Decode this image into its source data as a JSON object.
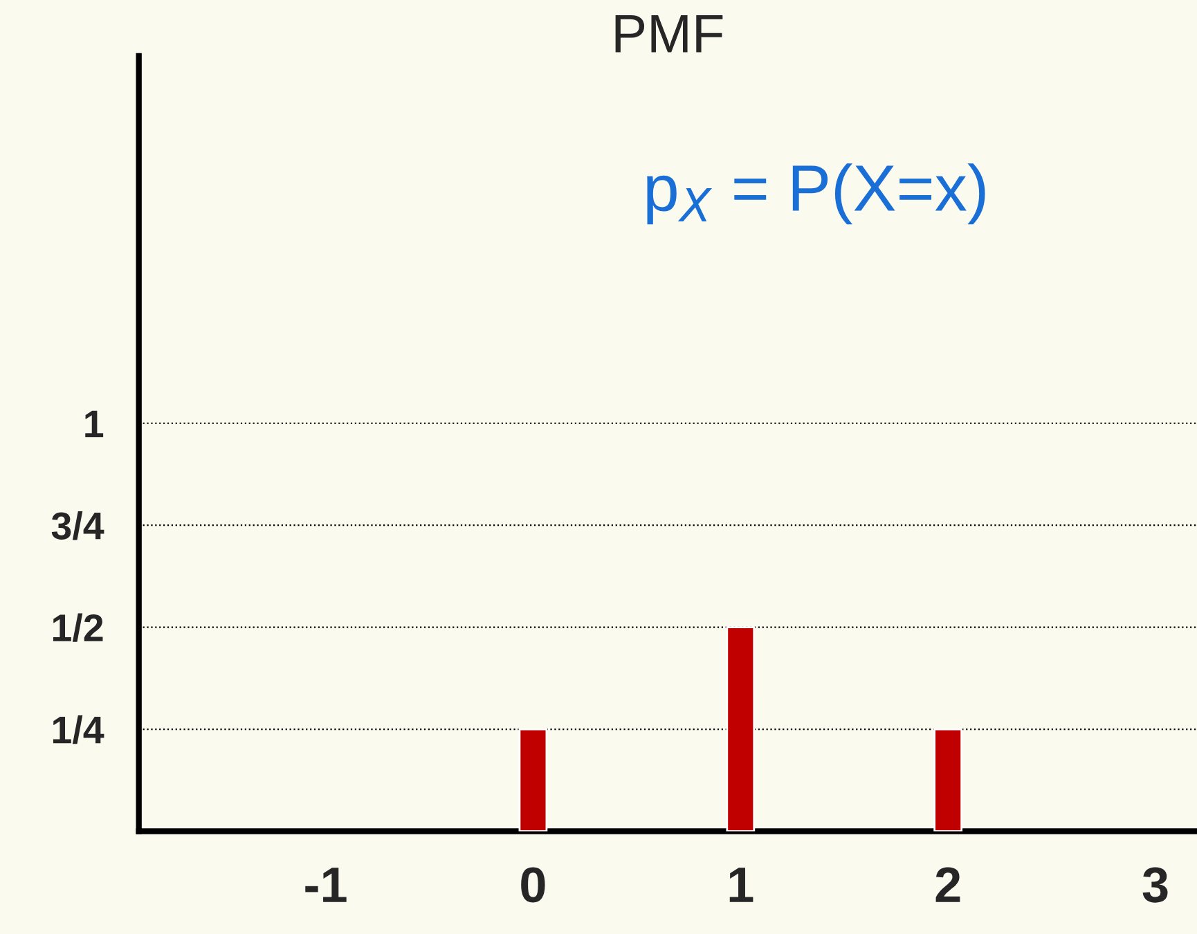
{
  "chart_data": {
    "type": "bar",
    "title": "PMF",
    "x": [
      0,
      1,
      2
    ],
    "values": [
      0.25,
      0.5,
      0.25
    ],
    "color": "#c00000",
    "xlim": [
      -1.9,
      3.2
    ],
    "xticks": [
      -1,
      0,
      1,
      2,
      3
    ],
    "ylim": [
      0,
      1.9
    ],
    "yticks": [
      {
        "value": 0.25,
        "label": "1/4"
      },
      {
        "value": 0.5,
        "label": "1/2"
      },
      {
        "value": 0.75,
        "label": "3/4"
      },
      {
        "value": 1,
        "label": "1"
      }
    ],
    "grid": "y",
    "annotations": [
      "p$_{X}$ = P(X=x)"
    ]
  }
}
